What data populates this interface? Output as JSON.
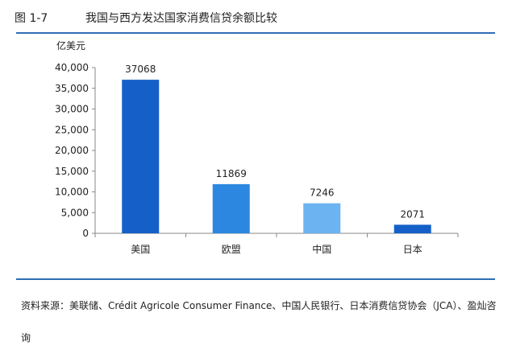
{
  "figure": {
    "number": "图 1-7",
    "title": "我国与西方发达国家消费信贷余额比较"
  },
  "chart_data": {
    "type": "bar",
    "categories": [
      "美国",
      "欧盟",
      "中国",
      "日本"
    ],
    "values": [
      37068,
      11869,
      7246,
      2071
    ],
    "value_labels": [
      "37068",
      "11869",
      "7246",
      "2071"
    ],
    "ylabel": "亿美元",
    "ylim": [
      0,
      40000
    ],
    "yticks": [
      0,
      5000,
      10000,
      15000,
      20000,
      25000,
      30000,
      35000,
      40000
    ],
    "ytick_labels": [
      "0",
      "5,000",
      "10,000",
      "15,000",
      "20,000",
      "25,000",
      "30,000",
      "35,000",
      "40,000"
    ],
    "bar_colors": [
      "#1560c8",
      "#2b87e0",
      "#6bb4f1",
      "#1560c8"
    ],
    "grid": false,
    "legend": "none"
  },
  "source": "资料来源：美联储、Crédit Agricole Consumer Finance、中国人民银行、日本消费信贷协会（JCA）、盈灿咨询"
}
